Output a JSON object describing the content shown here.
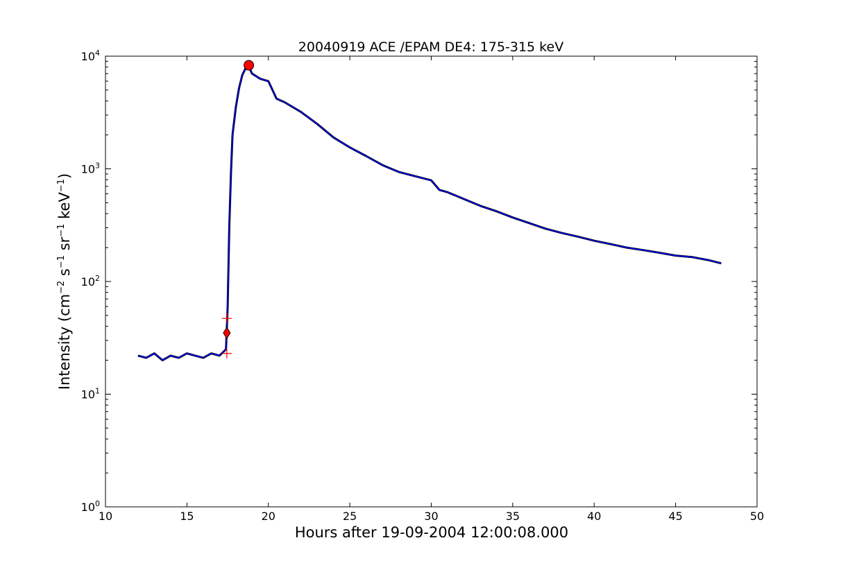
{
  "chart_data": {
    "type": "line",
    "title": "20040919 ACE /EPAM DE4: 175-315 keV",
    "xlabel": "Hours after 19-09-2004 12:00:08.000",
    "ylabel": {
      "prefix": "Intensity (cm",
      "exp1": "−2",
      "s": " s",
      "exp2": "−1",
      "sr": " sr",
      "exp3": "−1",
      "kev": " keV",
      "exp4": "−1",
      "suffix": ")"
    },
    "xlim": [
      10,
      50
    ],
    "ylim": [
      1,
      10000
    ],
    "yscale": "log",
    "grid": false,
    "x_ticks": [
      "10",
      "15",
      "20",
      "25",
      "30",
      "35",
      "40",
      "45",
      "50"
    ],
    "y_ticks": [
      {
        "base": "10",
        "exp": "0",
        "value": 1
      },
      {
        "base": "10",
        "exp": "1",
        "value": 10
      },
      {
        "base": "10",
        "exp": "2",
        "value": 100
      },
      {
        "base": "10",
        "exp": "3",
        "value": 1000
      },
      {
        "base": "10",
        "exp": "4",
        "value": 10000
      }
    ],
    "series": [
      {
        "color": "#000000",
        "x": [
          12.0,
          12.5,
          13.0,
          13.5,
          14.0,
          14.5,
          15.0,
          15.5,
          16.0,
          16.5,
          17.0,
          17.4,
          17.5,
          17.6,
          17.7,
          17.8,
          18.0,
          18.2,
          18.4,
          18.6,
          18.8,
          19.0,
          19.5,
          20.0,
          20.5,
          21.0,
          22.0,
          23.0,
          24.0,
          25.0,
          26.0,
          27.0,
          28.0,
          29.0,
          30.0,
          30.5,
          31.0,
          32.0,
          33.0,
          34.0,
          35.0,
          36.0,
          37.0,
          38.0,
          39.0,
          40.0,
          41.0,
          42.0,
          43.0,
          44.0,
          45.0,
          46.0,
          47.0,
          47.8
        ],
        "y": [
          22,
          21,
          23,
          20,
          22,
          21,
          23,
          22,
          21,
          23,
          22,
          25,
          60,
          300,
          900,
          2000,
          3500,
          5200,
          6800,
          7800,
          8000,
          7000,
          6300,
          6000,
          4200,
          3900,
          3200,
          2500,
          1900,
          1550,
          1300,
          1080,
          940,
          860,
          790,
          650,
          620,
          540,
          470,
          420,
          370,
          330,
          295,
          270,
          250,
          230,
          215,
          200,
          190,
          180,
          170,
          165,
          155,
          145
        ]
      },
      {
        "color": "#0000ff",
        "x": [
          12.0,
          12.5,
          13.0,
          13.5,
          14.0,
          14.5,
          15.0,
          15.5,
          16.0,
          16.5,
          17.0,
          17.4,
          17.5,
          17.6,
          17.7,
          17.8,
          18.0,
          18.2,
          18.4,
          18.6,
          18.8,
          19.0,
          19.5,
          20.0,
          20.5,
          21.0,
          22.0,
          23.0,
          24.0,
          25.0,
          26.0,
          27.0,
          28.0,
          29.0,
          30.0,
          30.5,
          31.0,
          32.0,
          33.0,
          34.0,
          35.0,
          36.0,
          37.0,
          38.0,
          39.0,
          40.0,
          41.0,
          42.0,
          43.0,
          44.0,
          45.0,
          46.0,
          47.0,
          47.8
        ],
        "y": [
          22,
          21,
          23,
          20,
          22,
          21,
          23,
          22,
          21,
          23,
          22,
          25,
          60,
          300,
          900,
          2000,
          3500,
          5200,
          6800,
          7800,
          8000,
          7000,
          6300,
          6000,
          4200,
          3900,
          3200,
          2500,
          1900,
          1550,
          1300,
          1080,
          940,
          860,
          790,
          650,
          620,
          540,
          470,
          420,
          370,
          330,
          295,
          270,
          250,
          230,
          215,
          200,
          190,
          180,
          170,
          165,
          155,
          145
        ]
      }
    ],
    "markers": [
      {
        "type": "circle",
        "x": 18.8,
        "y": 8300,
        "color": "#ff0000"
      },
      {
        "type": "diamond",
        "x": 17.45,
        "y": 35,
        "color": "#ff0000"
      },
      {
        "type": "plus",
        "x": 17.45,
        "y": 47,
        "color": "#ff0000"
      },
      {
        "type": "plus",
        "x": 17.45,
        "y": 23,
        "color": "#ff0000"
      }
    ]
  }
}
